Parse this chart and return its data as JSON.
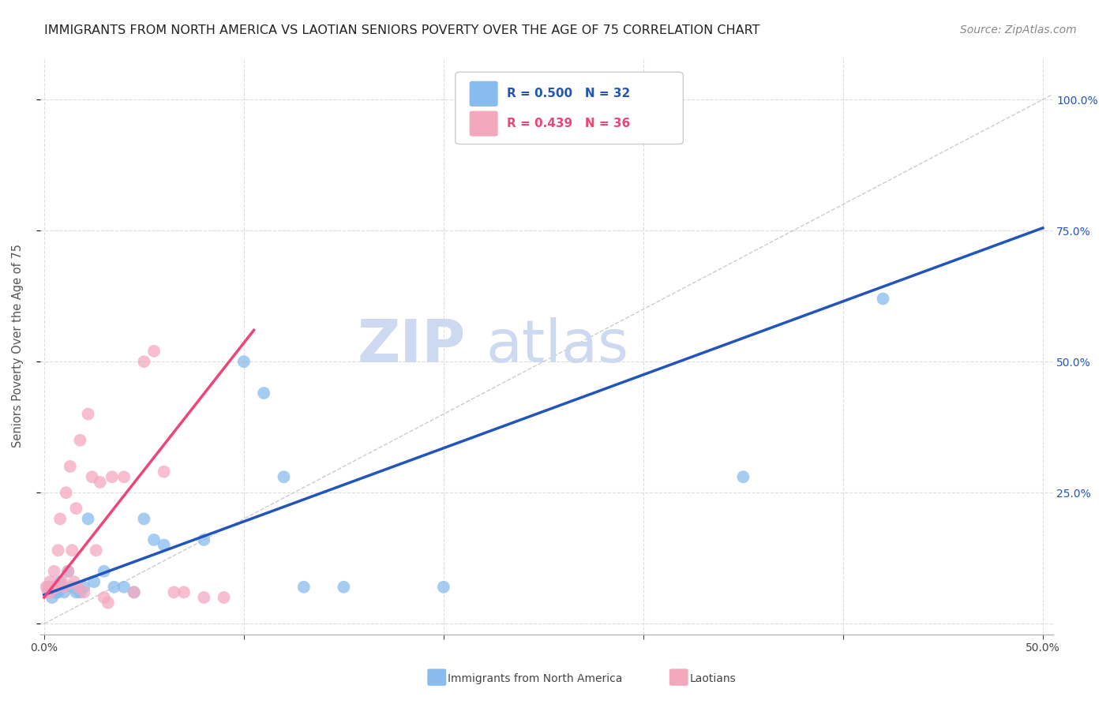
{
  "title": "IMMIGRANTS FROM NORTH AMERICA VS LAOTIAN SENIORS POVERTY OVER THE AGE OF 75 CORRELATION CHART",
  "source": "Source: ZipAtlas.com",
  "ylabel": "Seniors Poverty Over the Age of 75",
  "legend_label_blue": "Immigrants from North America",
  "legend_label_pink": "Laotians",
  "r_blue": "0.500",
  "n_blue": "32",
  "r_pink": "0.439",
  "n_pink": "36",
  "xlim": [
    -0.002,
    0.505
  ],
  "ylim": [
    -0.02,
    1.08
  ],
  "xticks": [
    0.0,
    0.1,
    0.2,
    0.3,
    0.4,
    0.5
  ],
  "yticks": [
    0.0,
    0.25,
    0.5,
    0.75,
    1.0
  ],
  "ytick_labels_right": [
    "",
    "25.0%",
    "50.0%",
    "75.0%",
    "100.0%"
  ],
  "color_blue": "#88bbee",
  "color_pink": "#f4a8be",
  "color_blue_line": "#2255bb",
  "color_pink_line": "#ee4477",
  "watermark_color": "#ccd9f0",
  "blue_scatter_x": [
    0.002,
    0.003,
    0.004,
    0.005,
    0.006,
    0.007,
    0.008,
    0.009,
    0.01,
    0.012,
    0.014,
    0.016,
    0.018,
    0.02,
    0.022,
    0.025,
    0.03,
    0.035,
    0.04,
    0.045,
    0.05,
    0.055,
    0.06,
    0.08,
    0.1,
    0.11,
    0.12,
    0.13,
    0.15,
    0.2,
    0.35,
    0.42
  ],
  "blue_scatter_y": [
    0.07,
    0.06,
    0.05,
    0.07,
    0.06,
    0.06,
    0.08,
    0.07,
    0.06,
    0.1,
    0.07,
    0.06,
    0.06,
    0.07,
    0.2,
    0.08,
    0.1,
    0.07,
    0.07,
    0.06,
    0.2,
    0.16,
    0.15,
    0.16,
    0.5,
    0.44,
    0.28,
    0.07,
    0.07,
    0.07,
    0.28,
    0.62
  ],
  "pink_scatter_x": [
    0.001,
    0.002,
    0.003,
    0.003,
    0.004,
    0.005,
    0.006,
    0.007,
    0.008,
    0.009,
    0.01,
    0.011,
    0.012,
    0.013,
    0.014,
    0.015,
    0.016,
    0.017,
    0.018,
    0.02,
    0.022,
    0.024,
    0.026,
    0.028,
    0.03,
    0.032,
    0.034,
    0.04,
    0.045,
    0.05,
    0.055,
    0.06,
    0.065,
    0.07,
    0.08,
    0.09
  ],
  "pink_scatter_y": [
    0.07,
    0.06,
    0.06,
    0.08,
    0.07,
    0.1,
    0.07,
    0.14,
    0.2,
    0.08,
    0.07,
    0.25,
    0.1,
    0.3,
    0.14,
    0.08,
    0.22,
    0.07,
    0.35,
    0.06,
    0.4,
    0.28,
    0.14,
    0.27,
    0.05,
    0.04,
    0.28,
    0.28,
    0.06,
    0.5,
    0.52,
    0.29,
    0.06,
    0.06,
    0.05,
    0.05
  ],
  "blue_line_x": [
    0.0,
    0.5
  ],
  "blue_line_y": [
    0.055,
    0.755
  ],
  "pink_line_x": [
    0.0,
    0.105
  ],
  "pink_line_y": [
    0.05,
    0.56
  ],
  "diag_line_x": [
    0.0,
    0.505
  ],
  "diag_line_y": [
    0.0,
    1.01
  ],
  "title_fontsize": 11.5,
  "axis_label_fontsize": 10.5,
  "tick_fontsize": 10,
  "source_fontsize": 10
}
